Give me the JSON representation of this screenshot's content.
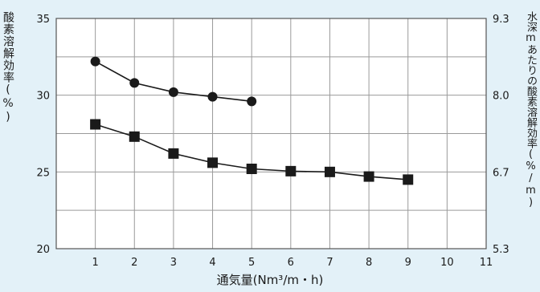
{
  "chart_data": {
    "type": "line",
    "x_ticks": [
      1,
      2,
      3,
      4,
      5,
      6,
      7,
      8,
      9,
      10,
      11
    ],
    "xlabel": "通気量(Nm³/m・h)",
    "ylabel_left": "酸素溶解効率(%)",
    "ylabel_right": "水深mあたりの酸素溶解効率(%/m)",
    "y_left_ticks": [
      20,
      25,
      30,
      35
    ],
    "y_right_ticks": [
      5.3,
      6.7,
      8.0,
      9.3
    ],
    "ylim_left": [
      20,
      35
    ],
    "grid": true,
    "series": [
      {
        "marker": "circle",
        "x": [
          1,
          2,
          3,
          4,
          5
        ],
        "y": [
          32.2,
          30.8,
          30.2,
          29.9,
          29.6
        ]
      },
      {
        "marker": "square",
        "x": [
          1,
          2,
          3,
          4,
          5,
          6,
          7,
          8,
          9
        ],
        "y": [
          28.1,
          27.3,
          26.2,
          25.6,
          25.2,
          25.05,
          25.0,
          24.7,
          24.5
        ]
      }
    ]
  }
}
